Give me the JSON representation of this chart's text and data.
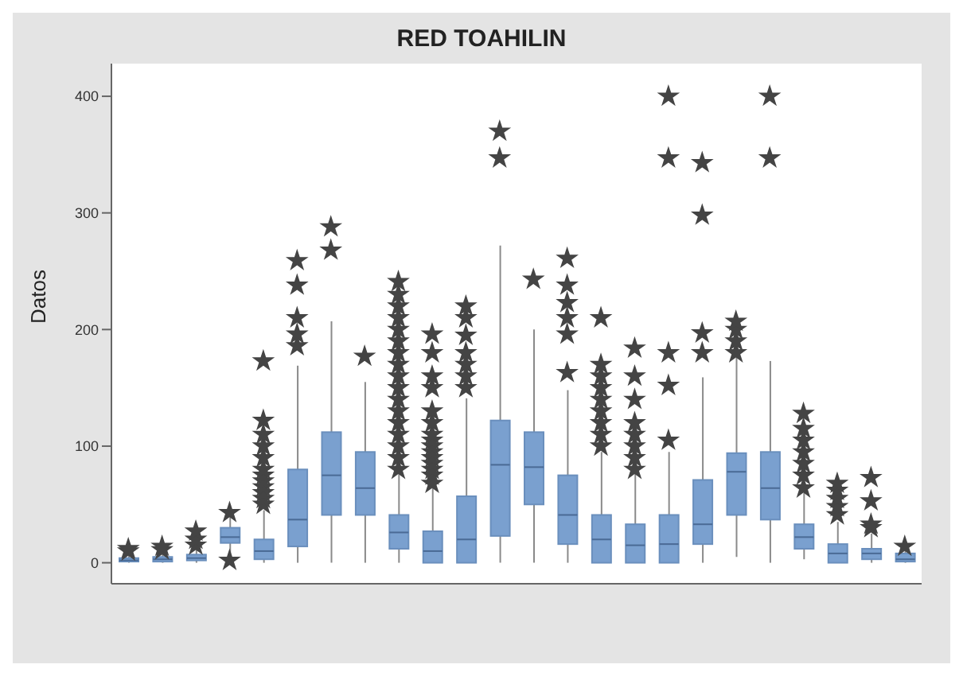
{
  "chart_data": {
    "type": "box",
    "title": "RED TOAHILIN",
    "ylabel": "Datos",
    "categories": [
      null,
      null,
      null,
      null,
      null,
      null,
      null,
      null,
      null,
      null,
      null,
      null,
      null,
      null,
      null,
      null,
      null,
      null,
      null,
      null,
      null,
      null,
      null,
      null
    ],
    "color": "#7aa0cf",
    "marker": "star",
    "tick_labels": "y",
    "ylim": [
      -18,
      428
    ],
    "yticks": [
      0,
      100,
      200,
      300,
      400
    ],
    "boxes": [
      {
        "low": 0,
        "q1": 1,
        "median": 2,
        "q3": 4,
        "high": 8,
        "outliers": [
          10,
          12
        ]
      },
      {
        "low": 0,
        "q1": 1,
        "median": 3,
        "q3": 5,
        "high": 9,
        "outliers": [
          11,
          14
        ]
      },
      {
        "low": 0,
        "q1": 2,
        "median": 4,
        "q3": 7,
        "high": 12,
        "outliers": [
          15,
          20,
          27
        ]
      },
      {
        "low": 5,
        "q1": 17,
        "median": 22,
        "q3": 30,
        "high": 40,
        "outliers": [
          2,
          43
        ]
      },
      {
        "low": 0,
        "q1": 3,
        "median": 10,
        "q3": 20,
        "high": 45,
        "outliers": [
          50,
          55,
          60,
          65,
          70,
          75,
          80,
          90,
          100,
          110,
          122,
          173
        ]
      },
      {
        "low": 0,
        "q1": 14,
        "median": 37,
        "q3": 80,
        "high": 169,
        "outliers": [
          186,
          196,
          210,
          238,
          259
        ]
      },
      {
        "low": 0,
        "q1": 41,
        "median": 75,
        "q3": 112,
        "high": 207,
        "outliers": [
          268,
          288
        ]
      },
      {
        "low": 0,
        "q1": 41,
        "median": 64,
        "q3": 95,
        "high": 155,
        "outliers": [
          177
        ]
      },
      {
        "low": 0,
        "q1": 12,
        "median": 26,
        "q3": 41,
        "high": 77,
        "outliers": [
          80,
          90,
          100,
          110,
          120,
          130,
          140,
          150,
          160,
          170,
          180,
          190,
          200,
          210,
          220,
          230,
          241
        ]
      },
      {
        "low": 0,
        "q1": 0,
        "median": 10,
        "q3": 27,
        "high": 64,
        "outliers": [
          68,
          75,
          80,
          85,
          90,
          95,
          100,
          105,
          110,
          120,
          130,
          150,
          160,
          180,
          196
        ]
      },
      {
        "low": 0,
        "q1": 0,
        "median": 20,
        "q3": 57,
        "high": 141,
        "outliers": [
          150,
          160,
          170,
          180,
          195,
          210,
          220
        ]
      },
      {
        "low": 0,
        "q1": 23,
        "median": 84,
        "q3": 122,
        "high": 272,
        "outliers": [
          347,
          370
        ]
      },
      {
        "low": 0,
        "q1": 50,
        "median": 82,
        "q3": 112,
        "high": 200,
        "outliers": [
          243
        ]
      },
      {
        "low": 0,
        "q1": 16,
        "median": 41,
        "q3": 75,
        "high": 148,
        "outliers": [
          163,
          196,
          210,
          223,
          238,
          261
        ]
      },
      {
        "low": 0,
        "q1": 0,
        "median": 20,
        "q3": 41,
        "high": 95,
        "outliers": [
          100,
          110,
          120,
          130,
          140,
          150,
          160,
          170,
          210
        ]
      },
      {
        "low": 0,
        "q1": 0,
        "median": 15,
        "q3": 33,
        "high": 78,
        "outliers": [
          80,
          90,
          100,
          110,
          120,
          140,
          160,
          184
        ]
      },
      {
        "low": 0,
        "q1": 0,
        "median": 16,
        "q3": 41,
        "high": 95,
        "outliers": [
          105,
          152,
          180,
          347,
          400
        ]
      },
      {
        "low": 0,
        "q1": 16,
        "median": 33,
        "q3": 71,
        "high": 159,
        "outliers": [
          180,
          197,
          298,
          343
        ]
      },
      {
        "low": 5,
        "q1": 41,
        "median": 78,
        "q3": 94,
        "high": 177,
        "outliers": [
          180,
          190,
          200,
          207
        ]
      },
      {
        "low": 0,
        "q1": 37,
        "median": 64,
        "q3": 95,
        "high": 173,
        "outliers": [
          347,
          400
        ]
      },
      {
        "low": 3,
        "q1": 12,
        "median": 22,
        "q3": 33,
        "high": 60,
        "outliers": [
          64,
          75,
          85,
          95,
          105,
          115,
          128
        ]
      },
      {
        "low": 0,
        "q1": 0,
        "median": 8,
        "q3": 16,
        "high": 35,
        "outliers": [
          41,
          48,
          55,
          62,
          68
        ]
      },
      {
        "low": 0,
        "q1": 3,
        "median": 8,
        "q3": 12,
        "high": 25,
        "outliers": [
          30,
          33,
          53,
          73
        ]
      },
      {
        "low": 0,
        "q1": 1,
        "median": 3,
        "q3": 8,
        "high": 12,
        "outliers": [
          14
        ]
      }
    ]
  }
}
